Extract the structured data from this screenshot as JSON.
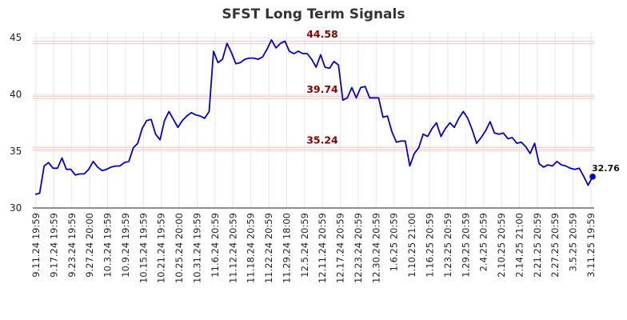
{
  "chart_data": {
    "type": "line",
    "title": "SFST Long Term Signals",
    "xlabel": "",
    "ylabel": "",
    "ylim": [
      30,
      45.5
    ],
    "yticks": [
      30,
      35,
      40,
      45
    ],
    "grid": true,
    "line_color": "#0000dd",
    "signal_color": "#8b0000",
    "signal_line_color": "#ffc8c8",
    "x_tick_labels": [
      "9.11.24 19:59",
      "9.17.24 19:59",
      "9.23.24 19:59",
      "9.27.24 20:00",
      "10.3.24 19:59",
      "10.9.24 19:59",
      "10.15.24 19:59",
      "10.21.24 19:59",
      "10.25.24 20:00",
      "10.31.24 19:59",
      "11.6.24 20:59",
      "11.12.24 20:59",
      "11.18.24 20:59",
      "11.22.24 20:59",
      "11.29.24 18:00",
      "12.5.24 20:59",
      "12.11.24 20:59",
      "12.17.24 20:59",
      "12.23.24 20:59",
      "12.30.24 20:59",
      "1.6.25 20:59",
      "1.10.25 21:00",
      "1.16.25 20:59",
      "1.23.25 20:59",
      "1.29.25 20:59",
      "2.4.25 20:59",
      "2.10.25 20:59",
      "2.14.25 21:00",
      "2.21.25 20:59",
      "2.27.25 20:59",
      "3.5.25 20:59",
      "3.11.25 19:59"
    ],
    "signals": [
      {
        "label": "44.58",
        "value": 44.58
      },
      {
        "label": "39.74",
        "value": 39.74
      },
      {
        "label": "35.24",
        "value": 35.24
      }
    ],
    "last_value_label": "32.76",
    "series": [
      {
        "values": [
          31.2,
          31.3,
          33.7,
          34.0,
          33.5,
          33.5,
          34.4,
          33.4,
          33.4,
          32.9,
          33.0,
          33.0,
          33.4,
          34.1,
          33.6,
          33.3,
          33.4,
          33.6,
          33.7,
          33.7,
          34.0,
          34.1,
          35.3,
          35.7,
          37.0,
          37.7,
          37.8,
          36.5,
          36.0,
          37.7,
          38.5,
          37.8,
          37.1,
          37.7,
          38.1,
          38.4,
          38.2,
          38.1,
          37.9,
          38.5,
          43.8,
          42.8,
          43.1,
          44.5,
          43.7,
          42.7,
          42.8,
          43.1,
          43.2,
          43.2,
          43.1,
          43.3,
          44.0,
          44.8,
          44.1,
          44.5,
          44.7,
          43.8,
          43.6,
          43.8,
          43.6,
          43.6,
          43.1,
          42.4,
          43.5,
          42.4,
          42.3,
          42.9,
          42.6,
          39.5,
          39.7,
          40.6,
          39.7,
          40.6,
          40.7,
          39.7,
          39.7,
          39.7,
          38.0,
          38.1,
          36.7,
          35.8,
          35.9,
          35.9,
          33.7,
          34.8,
          35.3,
          36.5,
          36.3,
          37.0,
          37.5,
          36.3,
          37.0,
          37.5,
          37.1,
          37.9,
          38.5,
          37.9,
          36.9,
          35.7,
          36.2,
          36.8,
          37.6,
          36.6,
          36.5,
          36.6,
          36.1,
          36.2,
          35.7,
          35.8,
          35.4,
          34.8,
          35.7,
          33.9,
          33.6,
          33.8,
          33.7,
          34.1,
          33.8,
          33.7,
          33.5,
          33.4,
          33.5,
          32.8,
          32.0,
          32.76
        ]
      }
    ]
  }
}
